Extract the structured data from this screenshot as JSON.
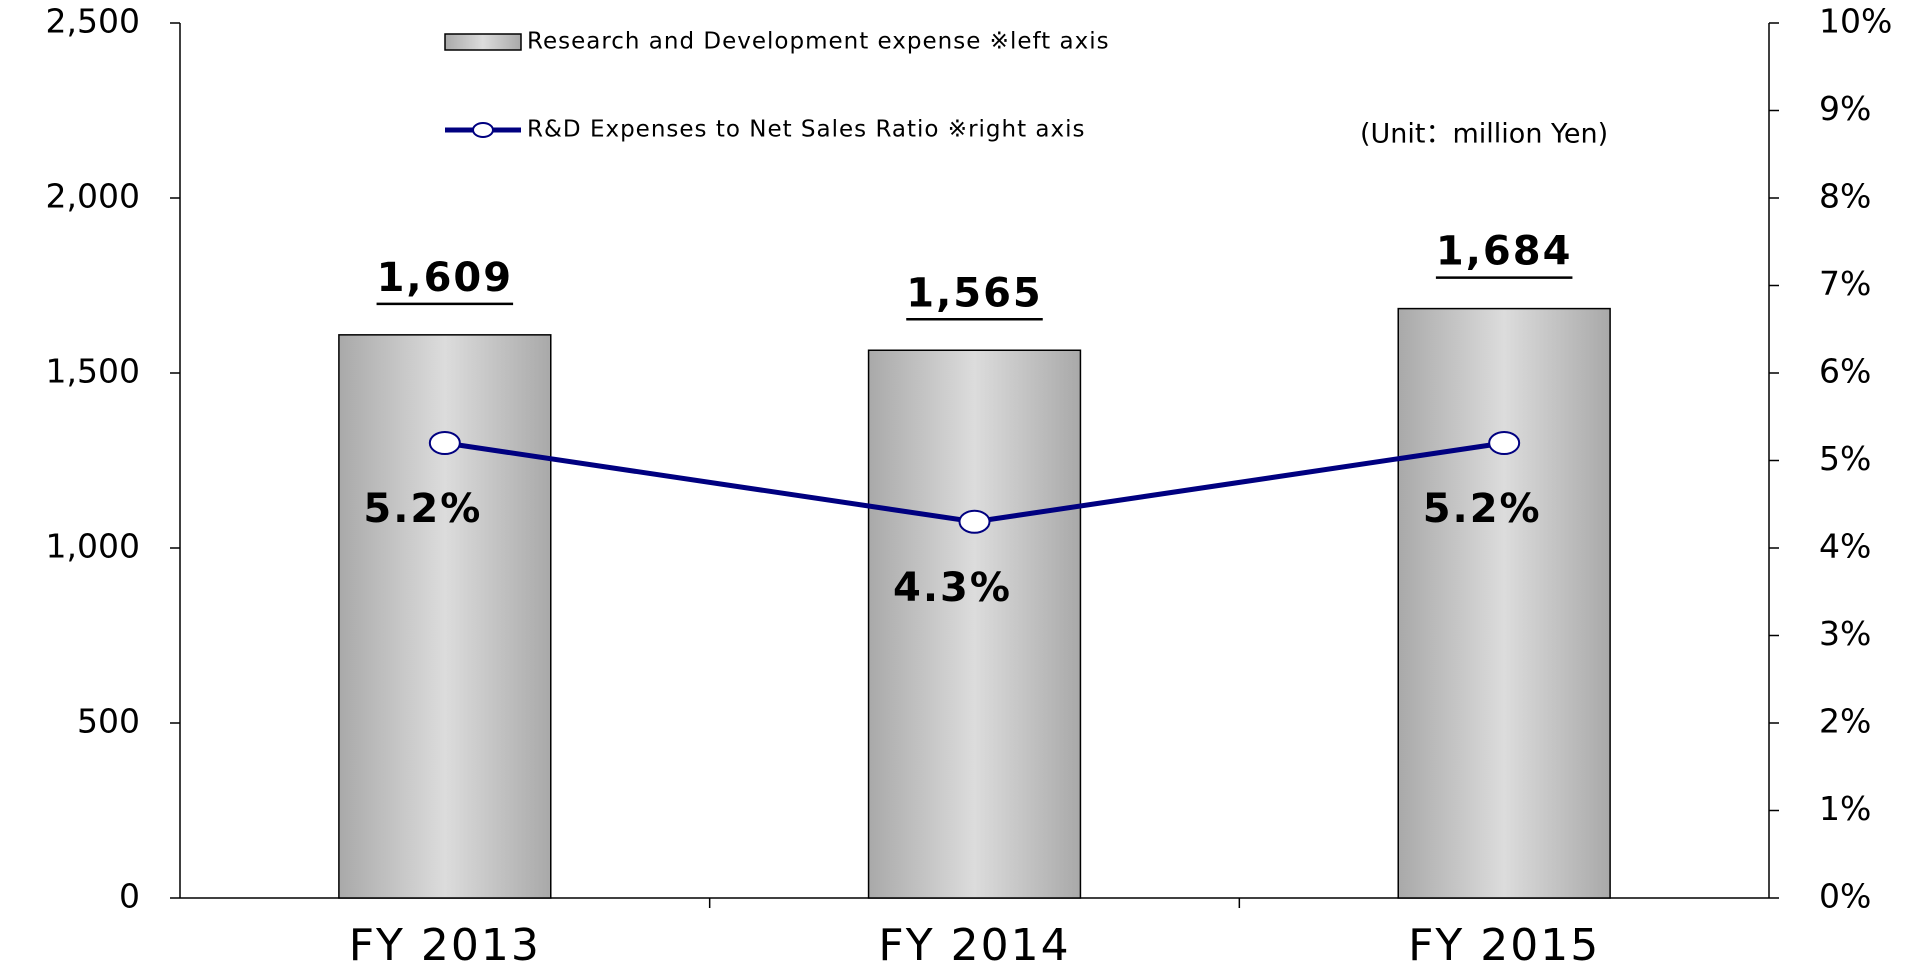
{
  "chart_data": {
    "type": "bar+line",
    "unit_note": "(Unit：million Yen)",
    "categories": [
      "FY 2013",
      "FY 2014",
      "FY 2015"
    ],
    "series": [
      {
        "name": "Research and Development expense ※left axis",
        "type": "bar",
        "color": "#c8c8c8",
        "values": [
          1609,
          1565,
          1684
        ],
        "value_labels": [
          "1,609",
          "1,565",
          "1,684"
        ]
      },
      {
        "name": "R&D Expenses to Net Sales Ratio ※right axis",
        "type": "line",
        "axis": "y2",
        "color": "#000080",
        "values": [
          5.2,
          4.3,
          5.2
        ],
        "value_labels": [
          "5.2%",
          "4.3%",
          "5.2%"
        ]
      }
    ],
    "ylim": [
      0,
      2500
    ],
    "yticks": [
      0,
      500,
      {
        "value": 1000,
        "label": "1,000"
      },
      {
        "value": 1500,
        "label": "1,500"
      },
      {
        "value": 2000,
        "label": "2,000"
      },
      {
        "value": 2500,
        "label": "2,500"
      }
    ],
    "y2lim": [
      0,
      10
    ],
    "y2ticks": [
      {
        "value": 0,
        "label": "0%"
      },
      {
        "value": 1,
        "label": "1%"
      },
      {
        "value": 2,
        "label": "2%"
      },
      {
        "value": 3,
        "label": "3%"
      },
      {
        "value": 4,
        "label": "4%"
      },
      {
        "value": 5,
        "label": "5%"
      },
      {
        "value": 6,
        "label": "6%"
      },
      {
        "value": 7,
        "label": "7%"
      },
      {
        "value": 8,
        "label": "8%"
      },
      {
        "value": 9,
        "label": "9%"
      },
      {
        "value": 10,
        "label": "10%"
      }
    ],
    "grid": false,
    "legend": "top"
  }
}
